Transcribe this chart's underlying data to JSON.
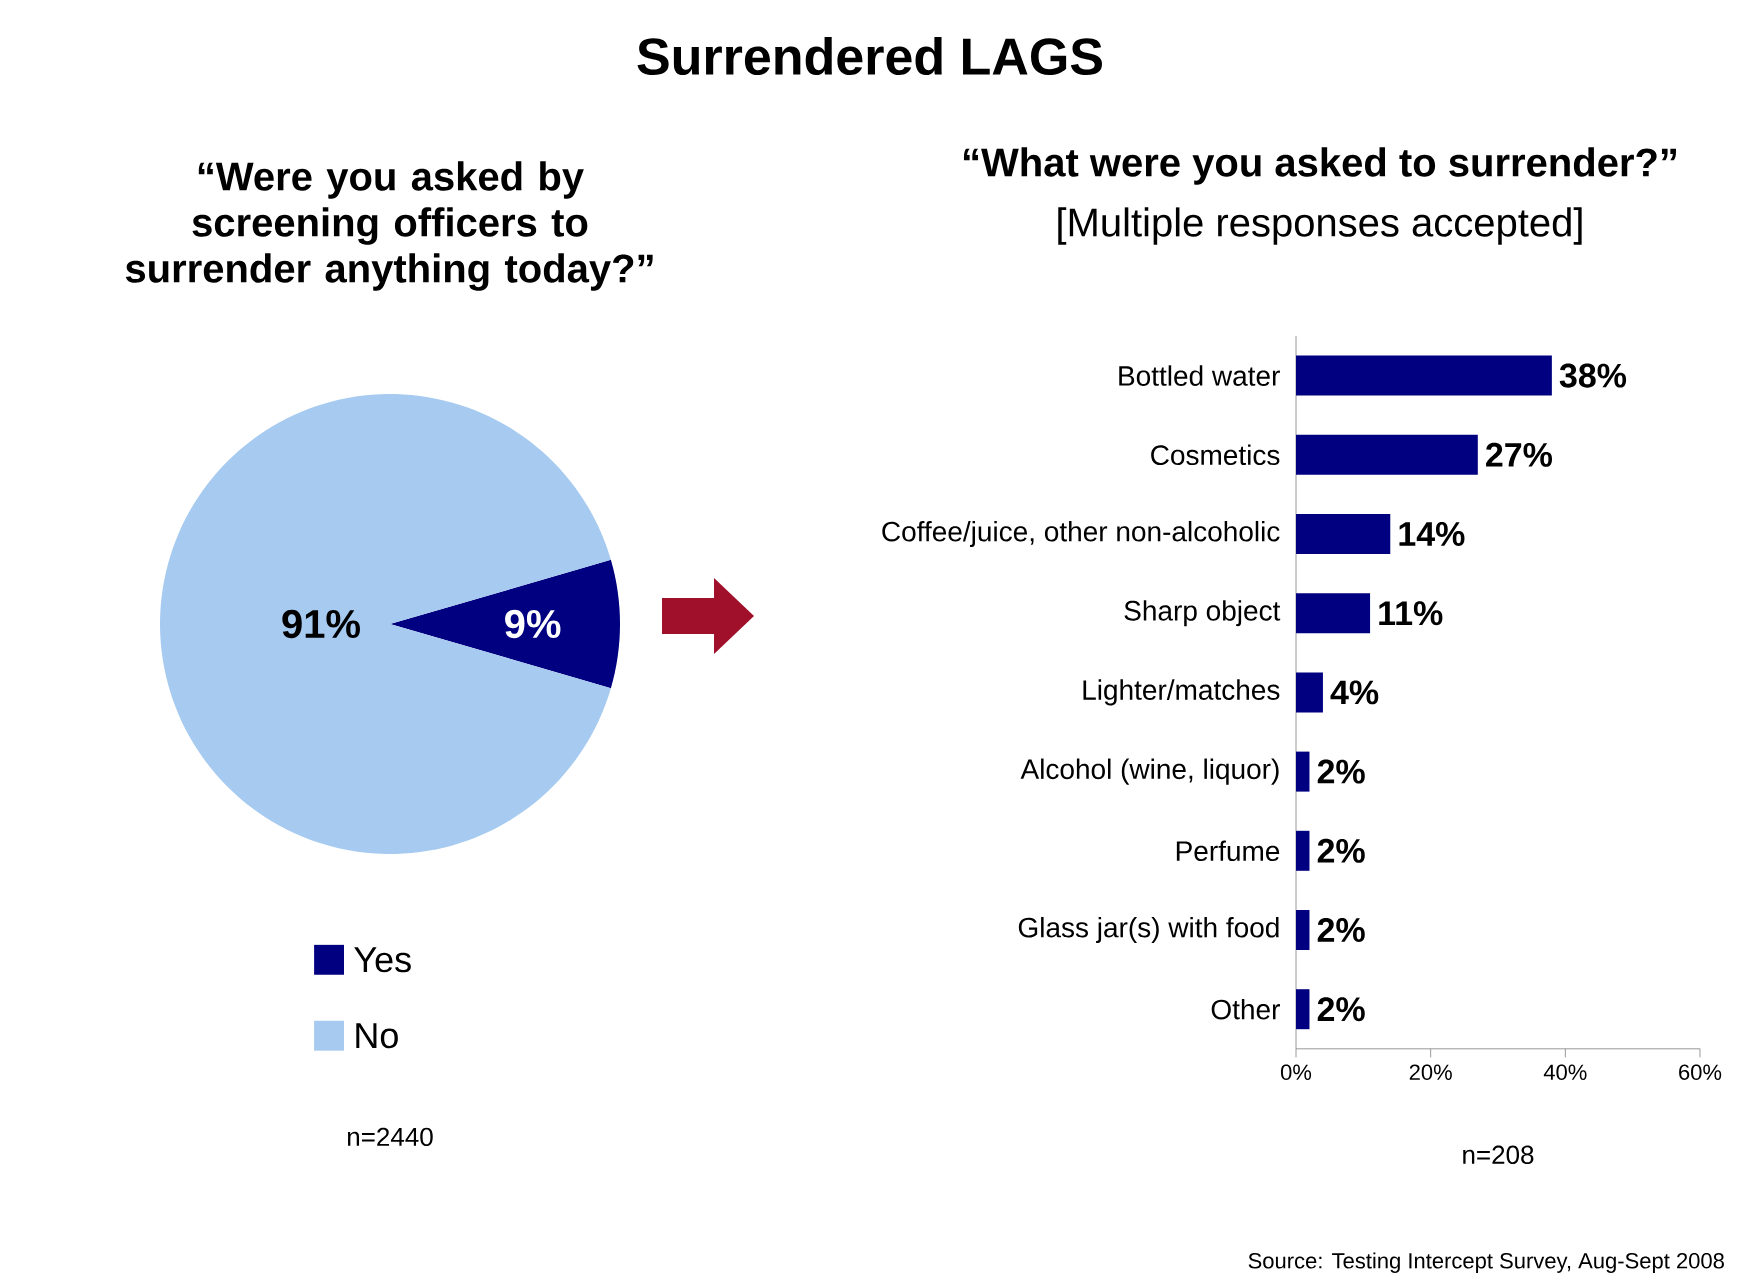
{
  "chart_data": [
    {
      "type": "other",
      "title": "Surrendered LAGS",
      "annotations": [
        "Source: Testing Intercept Survey, Aug-Sept 2008"
      ]
    },
    {
      "type": "pie",
      "title": "“Were you asked by screening officers to surrender anything today?”",
      "categories": [
        "Yes",
        "No"
      ],
      "values": [
        9,
        91
      ],
      "colors": [
        "#000080",
        "#a6caf0"
      ],
      "value_labels": [
        "9%",
        "91%"
      ],
      "legend": "bottom",
      "annotations": [
        "n=2440"
      ]
    },
    {
      "type": "bar",
      "orientation": "horizontal",
      "title": "“What were you asked to surrender?”",
      "subtitle": "[Multiple responses accepted]",
      "categories": [
        "Bottled water",
        "Cosmetics",
        "Coffee/juice, other non-alcoholic",
        "Sharp object",
        "Lighter/matches",
        "Alcohol (wine, liquor)",
        "Perfume",
        "Glass jar(s) with food",
        "Other"
      ],
      "values": [
        38,
        27,
        14,
        11,
        4,
        2,
        2,
        2,
        2
      ],
      "value_labels": [
        "38%",
        "27%",
        "14%",
        "11%",
        "4%",
        "2%",
        "2%",
        "2%",
        "2%"
      ],
      "color": "#000080",
      "xlim": [
        0,
        60
      ],
      "xticks": [
        {
          "value": 0,
          "label": "0%"
        },
        {
          "value": 20,
          "label": "20%"
        },
        {
          "value": 40,
          "label": "40%"
        },
        {
          "value": 60,
          "label": "60%"
        }
      ],
      "annotations": [
        "n=208"
      ]
    }
  ]
}
